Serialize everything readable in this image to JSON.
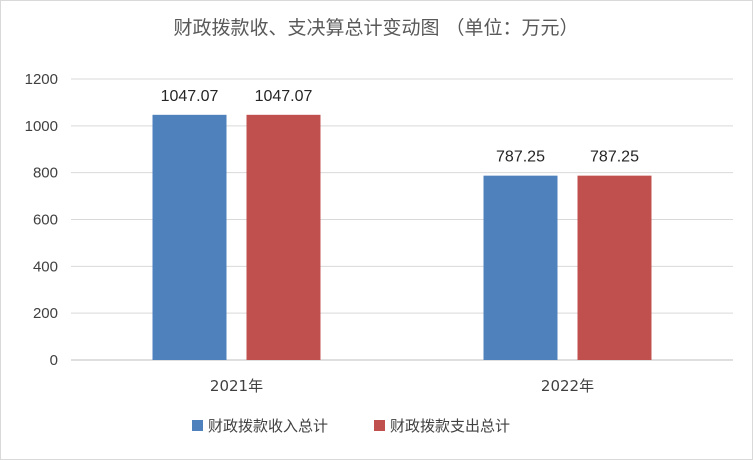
{
  "chart_data": {
    "type": "bar",
    "title": "财政拨款收、支决算总计变动图 （单位：万元）",
    "categories": [
      "2021年",
      "2022年"
    ],
    "series": [
      {
        "name": "财政拨款收入总计",
        "values": [
          1047.07,
          787.25
        ],
        "labels": [
          "1047.07",
          "787.25"
        ],
        "color": "#4f81bd"
      },
      {
        "name": "财政拨款支出总计",
        "values": [
          1047.07,
          787.25
        ],
        "labels": [
          "1047.07",
          "787.25"
        ],
        "color": "#c0504d"
      }
    ],
    "ylim": [
      0,
      1200
    ],
    "yticks": [
      0,
      200,
      400,
      600,
      800,
      1000,
      1200
    ],
    "grid": true,
    "legend": "bottom"
  }
}
